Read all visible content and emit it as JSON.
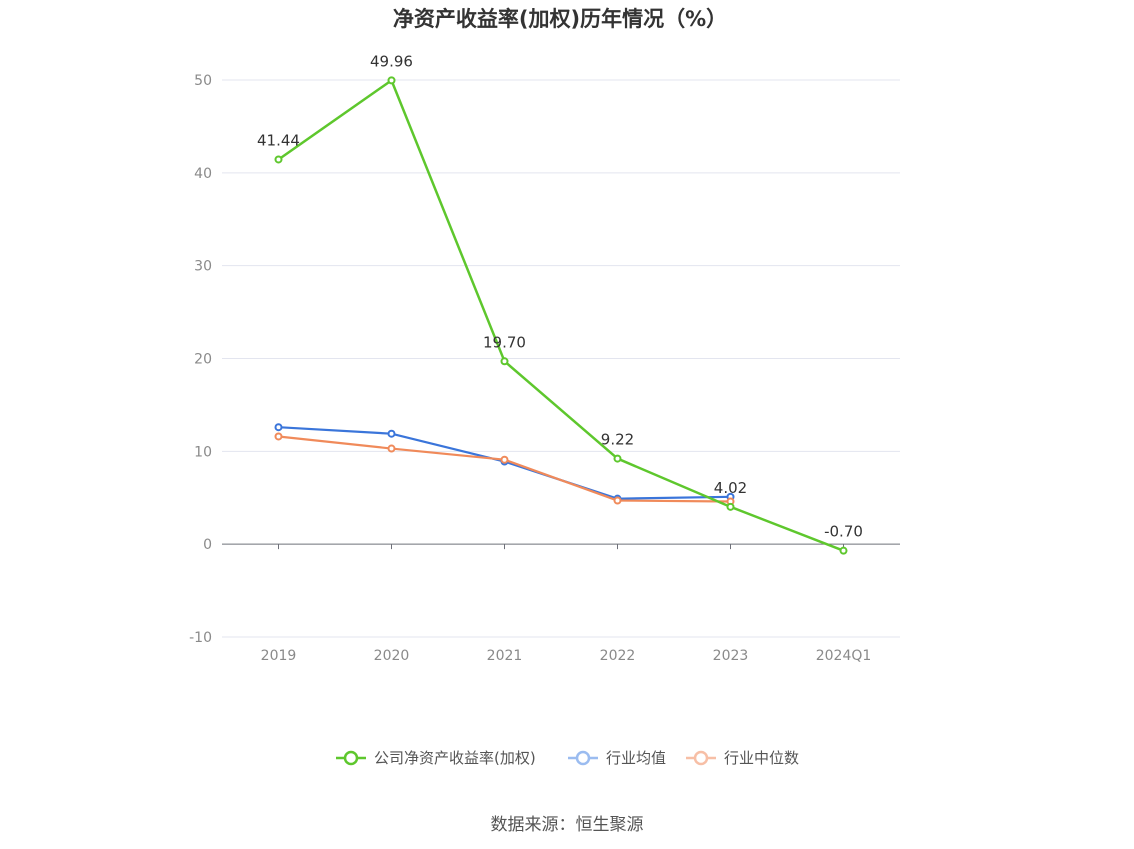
{
  "chart_data": {
    "type": "line",
    "title": "净资产收益率(加权)历年情况（%）",
    "categories": [
      "2019",
      "2020",
      "2021",
      "2022",
      "2023",
      "2024Q1"
    ],
    "ylim": [
      -10,
      50
    ],
    "yticks": [
      50,
      40,
      30,
      20,
      10,
      0,
      -10
    ],
    "grid": true,
    "legend_position": "bottom",
    "series": [
      {
        "name": "公司净资产收益率(加权)",
        "color": "#5ec72d",
        "values": [
          41.44,
          49.96,
          19.7,
          9.22,
          4.02,
          -0.7
        ],
        "labels": [
          "41.44",
          "49.96",
          "19.70",
          "9.22",
          "4.02",
          "-0.70"
        ]
      },
      {
        "name": "行业均值",
        "color": "#3a75da",
        "legend_color": "#9bbcf0",
        "values": [
          12.6,
          11.9,
          8.9,
          4.9,
          5.1,
          null
        ]
      },
      {
        "name": "行业中位数",
        "color": "#f08a5a",
        "legend_color": "#f7bfa6",
        "values": [
          11.6,
          10.3,
          9.1,
          4.7,
          4.6,
          null
        ]
      }
    ]
  },
  "source": "数据来源：恒生聚源"
}
